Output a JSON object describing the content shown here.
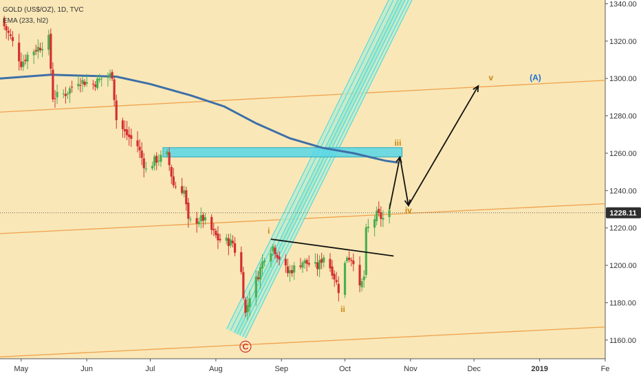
{
  "header": {
    "symbol_line": "GOLD (US$/OZ), 1D, TVC",
    "indicator_line": "EMA (233, hl2)"
  },
  "price_label": "1228.11",
  "colors": {
    "background": "#f9e7b7",
    "axis_background": "#ffffff",
    "bull_candle": "#4caf50",
    "bear_candle": "#d32f2f",
    "ema": "#3d6fa8",
    "channel_line": "#f0a04b",
    "pitchfork_fill": "#b5ecd0",
    "pitchfork_line": "#3fd7e0",
    "resistance_box": "#57d6e6",
    "wave_orange": "#c8860a",
    "wave_red": "#d32f2f",
    "wave_blue": "#1f6fd1",
    "price_line": "#666666"
  },
  "chart_data": {
    "type": "candlestick",
    "ylim": [
      1150,
      1342
    ],
    "y_ticks": [
      "1160.00",
      "1180.00",
      "1200.00",
      "1220.00",
      "1240.00",
      "1260.00",
      "1280.00",
      "1300.00",
      "1320.00",
      "1340.00"
    ],
    "y_tick_values": [
      1160,
      1180,
      1200,
      1220,
      1240,
      1260,
      1280,
      1300,
      1320,
      1340
    ],
    "x_ticks": [
      {
        "label": "May",
        "date": "2018-05-01",
        "bold": false
      },
      {
        "label": "Jun",
        "date": "2018-06-01",
        "bold": false
      },
      {
        "label": "Jul",
        "date": "2018-07-01",
        "bold": false
      },
      {
        "label": "Aug",
        "date": "2018-08-01",
        "bold": false
      },
      {
        "label": "Sep",
        "date": "2018-09-01",
        "bold": false
      },
      {
        "label": "Oct",
        "date": "2018-10-01",
        "bold": false
      },
      {
        "label": "Nov",
        "date": "2018-11-01",
        "bold": false
      },
      {
        "label": "Dec",
        "date": "2018-12-01",
        "bold": false
      },
      {
        "label": "2019",
        "date": "2019-01-01",
        "bold": true
      },
      {
        "label": "Fe",
        "date": "2019-02-01",
        "bold": false
      }
    ],
    "xlim": [
      "2018-04-21",
      "2019-02-01"
    ],
    "last_price": 1228.11,
    "close_path": [
      [
        "2018-04-21",
        1332
      ],
      [
        "2018-04-26",
        1322
      ],
      [
        "2018-05-01",
        1308
      ],
      [
        "2018-05-05",
        1314
      ],
      [
        "2018-05-10",
        1317
      ],
      [
        "2018-05-14",
        1321
      ],
      [
        "2018-05-16",
        1290
      ],
      [
        "2018-05-22",
        1292
      ],
      [
        "2018-05-28",
        1299
      ],
      [
        "2018-06-04",
        1297
      ],
      [
        "2018-06-08",
        1300
      ],
      [
        "2018-06-13",
        1302
      ],
      [
        "2018-06-15",
        1278
      ],
      [
        "2018-06-19",
        1271
      ],
      [
        "2018-06-25",
        1264
      ],
      [
        "2018-06-29",
        1251
      ],
      [
        "2018-07-03",
        1256
      ],
      [
        "2018-07-09",
        1259
      ],
      [
        "2018-07-12",
        1243
      ],
      [
        "2018-07-17",
        1240
      ],
      [
        "2018-07-19",
        1223
      ],
      [
        "2018-07-26",
        1225
      ],
      [
        "2018-08-02",
        1214
      ],
      [
        "2018-08-09",
        1212
      ],
      [
        "2018-08-13",
        1196
      ],
      [
        "2018-08-15",
        1174
      ],
      [
        "2018-08-17",
        1184
      ],
      [
        "2018-08-21",
        1195
      ],
      [
        "2018-08-24",
        1205
      ],
      [
        "2018-08-28",
        1210
      ],
      [
        "2018-09-04",
        1196
      ],
      [
        "2018-09-11",
        1202
      ],
      [
        "2018-09-18",
        1199
      ],
      [
        "2018-09-21",
        1205
      ],
      [
        "2018-09-25",
        1197
      ],
      [
        "2018-09-28",
        1187
      ],
      [
        "2018-10-02",
        1205
      ],
      [
        "2018-10-05",
        1203
      ],
      [
        "2018-10-08",
        1187
      ],
      [
        "2018-10-10",
        1194
      ],
      [
        "2018-10-11",
        1218
      ],
      [
        "2018-10-16",
        1227
      ],
      [
        "2018-10-19",
        1225
      ],
      [
        "2018-10-22",
        1228
      ]
    ],
    "ema_233": [
      [
        "2018-04-21",
        1300
      ],
      [
        "2018-05-15",
        1302
      ],
      [
        "2018-06-15",
        1301
      ],
      [
        "2018-07-01",
        1297
      ],
      [
        "2018-07-20",
        1291
      ],
      [
        "2018-08-05",
        1285
      ],
      [
        "2018-08-20",
        1276
      ],
      [
        "2018-09-05",
        1268
      ],
      [
        "2018-09-20",
        1263
      ],
      [
        "2018-10-05",
        1260
      ],
      [
        "2018-10-20",
        1256
      ],
      [
        "2018-10-26",
        1255
      ]
    ],
    "trend_channel": [
      {
        "from": [
          "2018-04-21",
          1282
        ],
        "to": [
          "2019-02-01",
          1299
        ]
      },
      {
        "from": [
          "2018-04-21",
          1217
        ],
        "to": [
          "2019-02-01",
          1233
        ]
      },
      {
        "from": [
          "2018-04-21",
          1151
        ],
        "to": [
          "2019-02-01",
          1167
        ]
      }
    ],
    "resistance_zone": {
      "from": "2018-07-07",
      "to": "2018-10-28",
      "low": 1258,
      "high": 1263
    },
    "neckline": {
      "from": [
        "2018-08-27",
        1214
      ],
      "to": [
        "2018-10-24",
        1205
      ]
    },
    "projection_path": [
      [
        "2018-10-22",
        1230
      ],
      [
        "2018-10-27",
        1258
      ],
      [
        "2018-10-31",
        1232
      ],
      [
        "2018-12-03",
        1296
      ]
    ],
    "pitchfork": {
      "pivot": [
        "2018-08-15",
        1161
      ],
      "lower_bound_start": [
        "2018-08-27",
        1214
      ],
      "slope_per_day": 2.3,
      "offsets": [
        0,
        9,
        18,
        27,
        36,
        48,
        60
      ],
      "inner_band": [
        2,
        4
      ],
      "end_date": "2018-12-31"
    },
    "wave_labels": [
      {
        "text": "i",
        "date": "2018-08-26",
        "price": 1217,
        "color": "orange"
      },
      {
        "text": "ii",
        "date": "2018-09-30",
        "price": 1175,
        "color": "orange"
      },
      {
        "text": "iii",
        "date": "2018-10-26",
        "price": 1264,
        "color": "orange"
      },
      {
        "text": "iv",
        "date": "2018-10-31",
        "price": 1228,
        "color": "orange"
      },
      {
        "text": "v",
        "date": "2018-12-09",
        "price": 1299,
        "color": "orange"
      },
      {
        "text": "(A)",
        "date": "2018-12-30",
        "price": 1299,
        "color": "blue"
      },
      {
        "text": "C",
        "date": "2018-08-15",
        "price": 1155,
        "color": "red",
        "circled": true
      }
    ]
  }
}
